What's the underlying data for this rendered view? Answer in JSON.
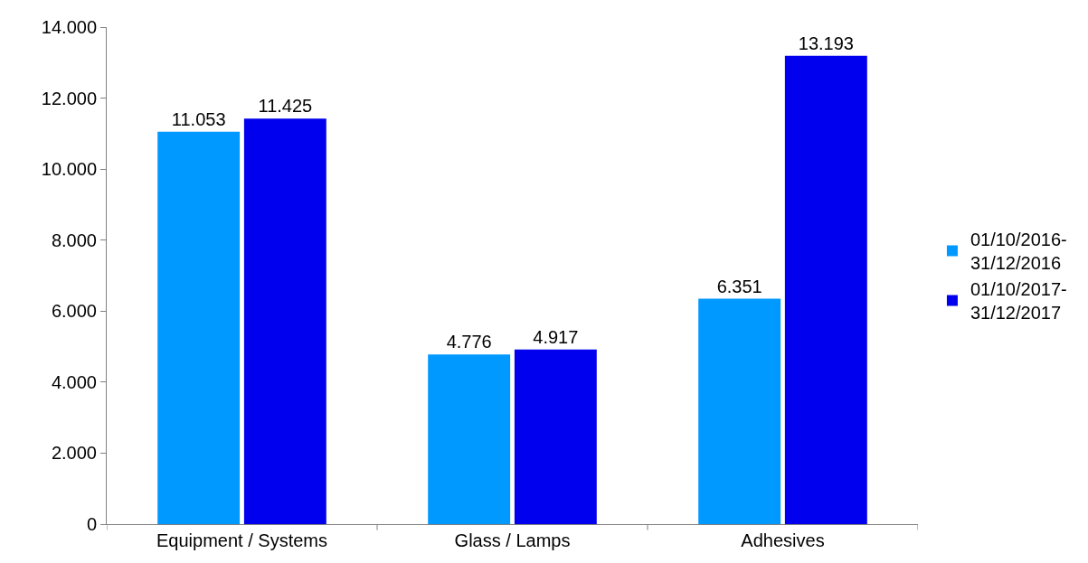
{
  "chart_data": {
    "type": "bar",
    "categories": [
      "Equipment / Systems",
      "Glass / Lamps",
      "Adhesives"
    ],
    "series": [
      {
        "name": "01/10/2016-31/12/2016",
        "color": "#0099ff",
        "values": [
          11053,
          4776,
          6351
        ],
        "value_labels": [
          "11.053",
          "4.776",
          "6.351"
        ]
      },
      {
        "name": "01/10/2017-31/12/2017",
        "color": "#0000ee",
        "values": [
          11425,
          4917,
          13193
        ],
        "value_labels": [
          "11.425",
          "4.917",
          "13.193"
        ]
      }
    ],
    "ylim": [
      0,
      14000
    ],
    "yticks": [
      0,
      {
        "value": 2000,
        "label": "2.000"
      },
      {
        "value": 4000,
        "label": "4.000"
      },
      {
        "value": 6000,
        "label": "6.000"
      },
      {
        "value": 8000,
        "label": "8.000"
      },
      {
        "value": 10000,
        "label": "10.000"
      },
      {
        "value": 12000,
        "label": "12.000"
      },
      {
        "value": 14000,
        "label": "14.000"
      }
    ],
    "legend": "right"
  }
}
